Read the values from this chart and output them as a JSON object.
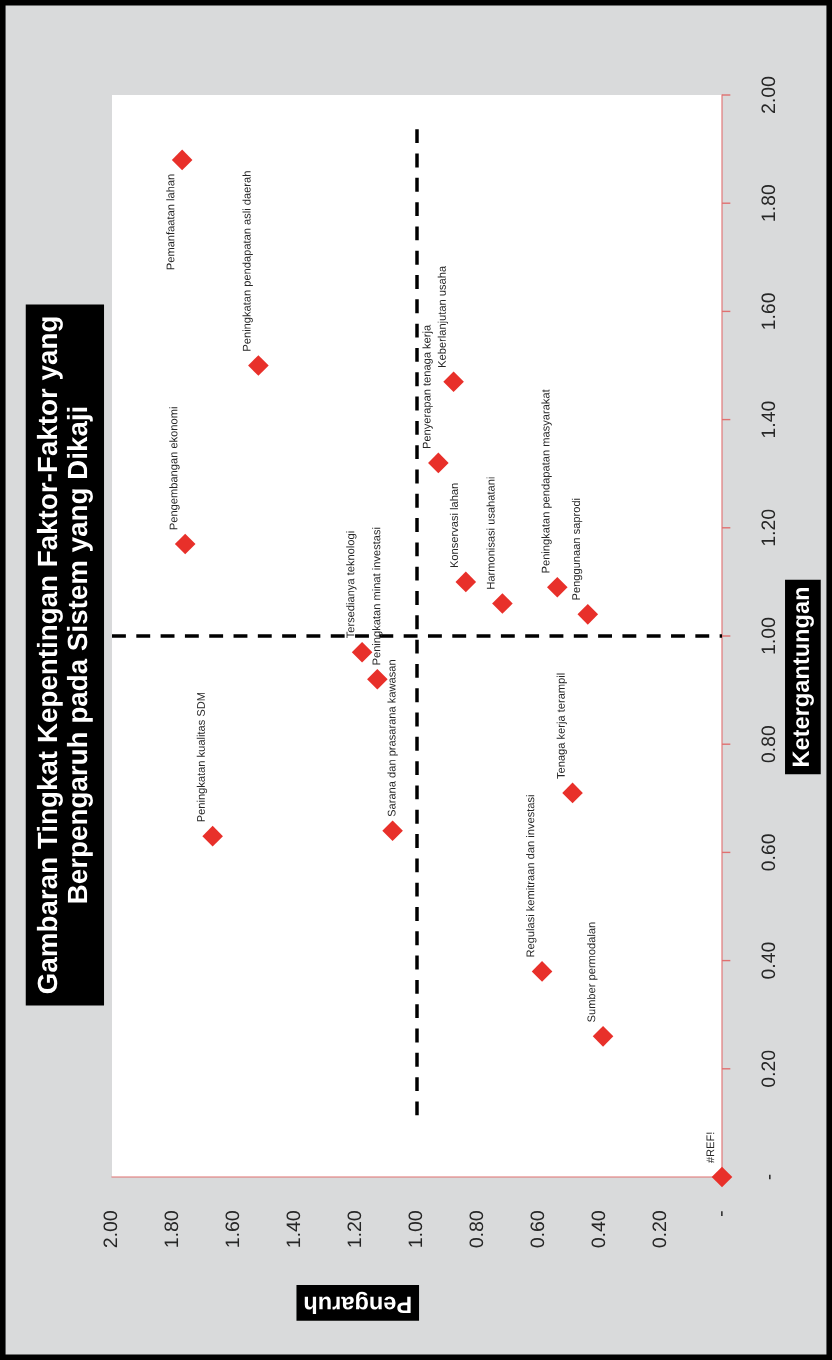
{
  "chart_data": {
    "type": "scatter",
    "title": "Gambaran Tingkat Kepentingan Faktor-Faktor yang\nBerpengaruh pada Sistem yang Dikaji",
    "xlabel": "Pengaruh",
    "ylabel": "Ketergantungan",
    "series": [
      {
        "color": "#e8302a",
        "x": [
          1.77,
          1.52,
          1.76,
          1.67,
          1.18,
          1.13,
          1.08,
          0.93,
          0.88,
          0.84,
          0.72,
          0.54,
          0.44,
          0.49,
          0.59,
          0.39,
          0
        ],
        "values": [
          1.88,
          1.5,
          1.17,
          0.63,
          0.97,
          0.92,
          0.64,
          1.32,
          1.47,
          1.1,
          1.06,
          1.09,
          1.04,
          0.71,
          0.38,
          0.26,
          0
        ]
      }
    ],
    "marker": "diamond",
    "xlim": [
      2,
      0
    ],
    "ylim": [
      0,
      2
    ],
    "xticks": [
      {
        "value": 2.0,
        "label": "2.00"
      },
      {
        "value": 1.8,
        "label": "1.80"
      },
      {
        "value": 1.6,
        "label": "1.60"
      },
      {
        "value": 1.4,
        "label": "1.40"
      },
      {
        "value": 1.2,
        "label": "1.20"
      },
      {
        "value": 1.0,
        "label": "1.00"
      },
      {
        "value": 0.8,
        "label": "0.80"
      },
      {
        "value": 0.6,
        "label": "0.60"
      },
      {
        "value": 0.4,
        "label": "0.40"
      },
      {
        "value": 0.2,
        "label": "0.20"
      },
      {
        "value": 0,
        "label": "-"
      }
    ],
    "yticks": [
      {
        "value": 0,
        "label": "-"
      },
      {
        "value": 0.2,
        "label": "0.20"
      },
      {
        "value": 0.4,
        "label": "0.40"
      },
      {
        "value": 0.6,
        "label": "0.60"
      },
      {
        "value": 0.8,
        "label": "0.80"
      },
      {
        "value": 1.0,
        "label": "1.00"
      },
      {
        "value": 1.2,
        "label": "1.20"
      },
      {
        "value": 1.4,
        "label": "1.40"
      },
      {
        "value": 1.6,
        "label": "1.60"
      },
      {
        "value": 1.8,
        "label": "1.80"
      },
      {
        "value": 2.0,
        "label": "2.00"
      }
    ],
    "ref_lines": [
      {
        "axis": "x",
        "value": 1.0,
        "color": "#000000",
        "line_style": "dashed"
      },
      {
        "axis": "y",
        "value": 1.0,
        "color": "#000000",
        "line_style": "dashed"
      }
    ],
    "annotations": [
      {
        "text": "Pemanfaatan lahan",
        "x": 1.77,
        "y": 1.88
      },
      {
        "text": "Peningkatan pendapatan asli daerah",
        "x": 1.52,
        "y": 1.5
      },
      {
        "text": "Pengembangan ekonomi",
        "x": 1.76,
        "y": 1.17
      },
      {
        "text": "Peningkatan kualitas SDM",
        "x": 1.67,
        "y": 0.63
      },
      {
        "text": "Tersedianya teknologi",
        "x": 1.18,
        "y": 0.97
      },
      {
        "text": "Peningkatan minat investasi",
        "x": 1.13,
        "y": 0.92
      },
      {
        "text": "Sarana dan prasarana kawasan",
        "x": 1.08,
        "y": 0.64
      },
      {
        "text": "Penyerapan tenaga kerja",
        "x": 0.93,
        "y": 1.32
      },
      {
        "text": "Keberlanjutan usaha",
        "x": 0.88,
        "y": 1.47
      },
      {
        "text": "Konservasi lahan",
        "x": 0.84,
        "y": 1.1
      },
      {
        "text": "Harmonisasi usahatani",
        "x": 0.72,
        "y": 1.06
      },
      {
        "text": "Peningkatan pendapatan masyarakat",
        "x": 0.54,
        "y": 1.09
      },
      {
        "text": "Penggunaan saprodi",
        "x": 0.44,
        "y": 1.04
      },
      {
        "text": "Tenaga kerja terampil",
        "x": 0.49,
        "y": 0.71
      },
      {
        "text": "Regulasi kemitraan dan investasi",
        "x": 0.59,
        "y": 0.38
      },
      {
        "text": "Sumber permodalan",
        "x": 0.39,
        "y": 0.26
      },
      {
        "text": "#REF!",
        "x": 0,
        "y": 0
      }
    ]
  }
}
